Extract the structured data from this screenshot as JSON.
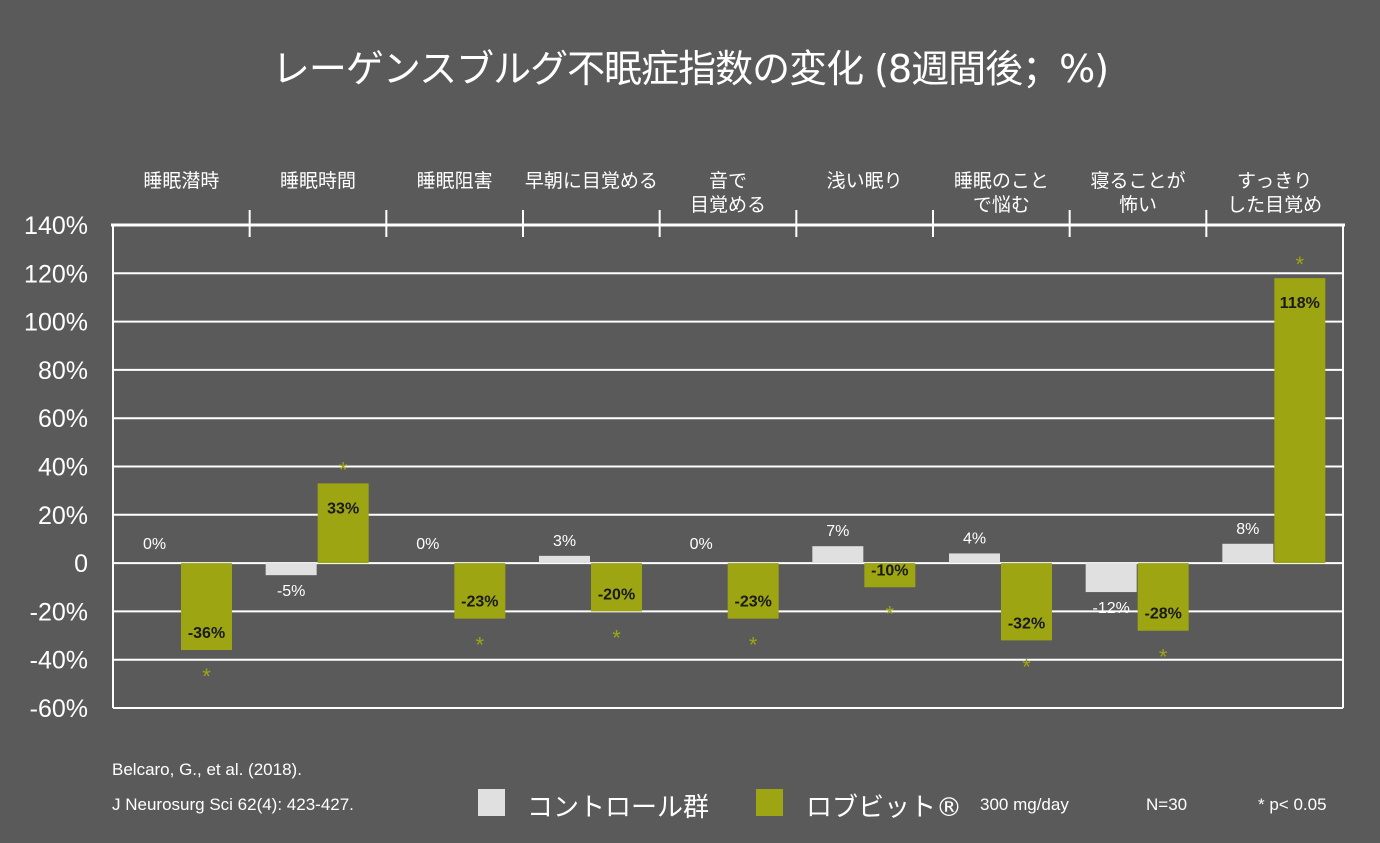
{
  "chart_data": {
    "type": "bar",
    "title": "レーゲンスブルグ不眠症指数の変化 (8週間後；%)",
    "categories": [
      [
        "睡眠潜時"
      ],
      [
        "睡眠時間"
      ],
      [
        "睡眠阻害"
      ],
      [
        "早朝に目覚める"
      ],
      [
        "音で",
        "目覚める"
      ],
      [
        "浅い眠り"
      ],
      [
        "睡眠のこと",
        "で悩む"
      ],
      [
        "寝ることが",
        "怖い"
      ],
      [
        "すっきり",
        "した目覚め"
      ]
    ],
    "series": [
      {
        "name": "コントロール群",
        "color": "#e0e0e0",
        "values": [
          0,
          -5,
          0,
          3,
          0,
          7,
          4,
          -12,
          8
        ],
        "labels": [
          "0%",
          "-5%",
          "0%",
          "3%",
          "0%",
          "7%",
          "4%",
          "-12%",
          "8%"
        ]
      },
      {
        "name": "ロブビット®",
        "color": "#9da512",
        "values": [
          -36,
          33,
          -23,
          -20,
          -23,
          -10,
          -32,
          -28,
          118
        ],
        "labels": [
          "-36%",
          "33%",
          "-23%",
          "-20%",
          "-23%",
          "-10%",
          "-32%",
          "-28%",
          "118%"
        ],
        "significant": [
          true,
          true,
          true,
          true,
          true,
          true,
          true,
          true,
          true
        ]
      }
    ],
    "ylim": [
      -60,
      140
    ],
    "yticks": [
      "140%",
      "120%",
      "100%",
      "80%",
      "60%",
      "40%",
      "20%",
      "0",
      "-20%",
      "-40%",
      "-60%"
    ],
    "ytick_values": [
      140,
      120,
      100,
      80,
      60,
      40,
      20,
      0,
      -20,
      -40,
      -60
    ],
    "grid": true,
    "legend_position": "bottom",
    "significance_marker": "*"
  },
  "footer": {
    "citation_line1": "Belcaro, G., et al. (2018).",
    "citation_line2": "J Neurosurg Sci 62(4): 423-427.",
    "dose": "300 mg/day",
    "n": "N=30",
    "significance": "* p< 0.05"
  }
}
